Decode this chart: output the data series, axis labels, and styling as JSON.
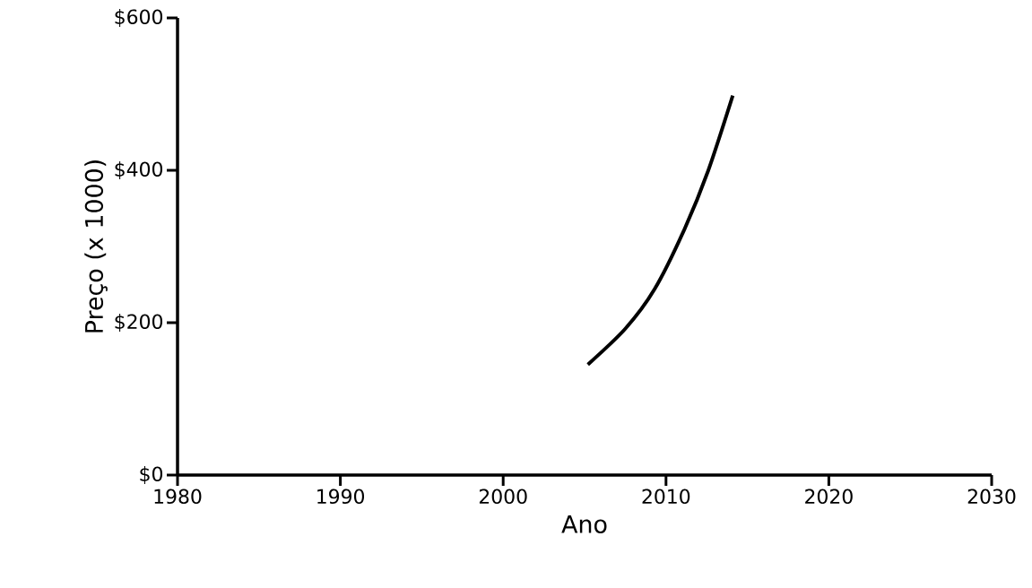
{
  "chart_data": {
    "type": "line",
    "xlabel": "Ano",
    "ylabel": "Preço (x 1000)",
    "x": [
      2005.2,
      2007.5,
      2009.3,
      2011.1,
      2012.6,
      2014.1
    ],
    "series": [
      {
        "color": "#000000",
        "values": [
          145,
          192,
          244,
          321,
          400,
          498
        ]
      }
    ],
    "xlim": [
      1980,
      2030
    ],
    "xticks": [
      1980,
      1990,
      2000,
      2010,
      2020,
      2030
    ],
    "ylim": [
      0,
      600
    ],
    "yticks": [
      {
        "value": 0,
        "label": "$0"
      },
      {
        "value": 200,
        "label": "$200"
      },
      {
        "value": 400,
        "label": "$400"
      },
      {
        "value": 600,
        "label": "$600"
      }
    ],
    "grid": false,
    "marker": "none",
    "line_style": "solid"
  }
}
